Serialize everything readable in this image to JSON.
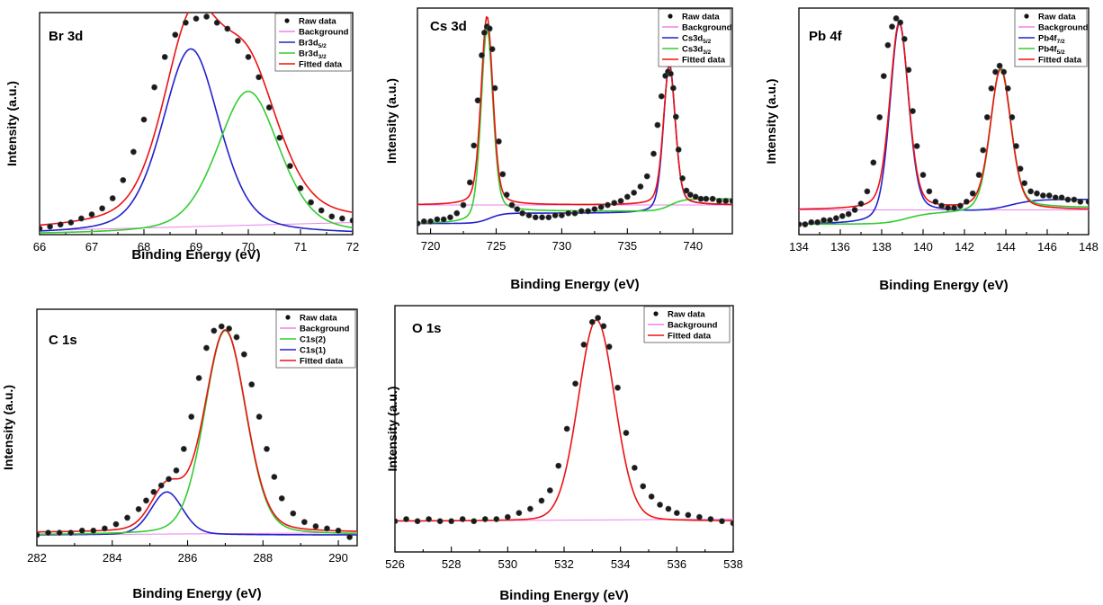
{
  "chart_data": [
    {
      "type": "line",
      "title": "Br 3d",
      "xlabel": "Binding Energy (eV)",
      "ylabel": "Intensity (a.u.)",
      "xlim": [
        66,
        72
      ],
      "ylim": [
        0,
        1.1
      ],
      "xticks": [
        "66",
        "67",
        "68",
        "69",
        "70",
        "71",
        "72"
      ],
      "legend_location": "top-right",
      "legend": [
        {
          "label": "Raw data",
          "sub": "",
          "style": "dots",
          "color": "#000000"
        },
        {
          "label": "Background",
          "sub": "",
          "style": "line",
          "color": "#ee82ee"
        },
        {
          "label": "Br3d",
          "sub": "5/2",
          "style": "line",
          "color": "#2222cc"
        },
        {
          "label": "Br3d",
          "sub": "3/2",
          "style": "line",
          "color": "#33cc33"
        },
        {
          "label": "Fitted data",
          "sub": "",
          "style": "line",
          "color": "#ee1111"
        }
      ],
      "series": [
        {
          "label_index": 1,
          "kind": "linear",
          "color": "#ee82ee",
          "from": [
            66,
            0.02
          ],
          "to": [
            72,
            0.06
          ]
        },
        {
          "label_index": 2,
          "kind": "voigt",
          "color": "#2222cc",
          "baseline": 0,
          "peaks": [
            [
              68.9,
              0.92,
              0.55,
              0.4
            ]
          ]
        },
        {
          "label_index": 3,
          "kind": "voigt",
          "color": "#33cc33",
          "baseline": 0,
          "peaks": [
            [
              70.0,
              0.71,
              0.6,
              0.4
            ]
          ]
        },
        {
          "label_index": 4,
          "kind": "voigt",
          "color": "#ee1111",
          "baseline": 0.02,
          "slope": 0.0067,
          "peaks": [
            [
              68.9,
              0.92,
              0.55,
              0.4
            ],
            [
              70.0,
              0.71,
              0.6,
              0.4
            ]
          ]
        }
      ],
      "raw": {
        "x": [
          66.0,
          66.2,
          66.4,
          66.6,
          66.8,
          67.0,
          67.2,
          67.4,
          67.6,
          67.8,
          68.0,
          68.2,
          68.4,
          68.6,
          68.8,
          69.0,
          69.2,
          69.4,
          69.6,
          69.8,
          70.0,
          70.2,
          70.4,
          70.6,
          70.8,
          71.0,
          71.2,
          71.4,
          71.6,
          71.8,
          72.0
        ],
        "y": [
          0.03,
          0.04,
          0.05,
          0.06,
          0.08,
          0.1,
          0.13,
          0.18,
          0.27,
          0.41,
          0.57,
          0.73,
          0.88,
          0.99,
          1.05,
          1.07,
          1.08,
          1.05,
          1.02,
          0.96,
          0.88,
          0.78,
          0.63,
          0.48,
          0.34,
          0.23,
          0.16,
          0.12,
          0.09,
          0.08,
          0.07
        ]
      }
    },
    {
      "type": "line",
      "title": "Cs 3d",
      "xlabel": "Binding Energy (eV)",
      "ylabel": "Intensity (a.u.)",
      "xlim": [
        719,
        743
      ],
      "ylim": [
        -0.05,
        1.05
      ],
      "xticks": [
        "720",
        "725",
        "730",
        "735",
        "740"
      ],
      "legend_location": "top-right",
      "legend": [
        {
          "label": "Raw data",
          "sub": "",
          "style": "dots",
          "color": "#000000"
        },
        {
          "label": "Background",
          "sub": "",
          "style": "line",
          "color": "#ee82ee"
        },
        {
          "label": "Cs3d",
          "sub": "5/2",
          "style": "line",
          "color": "#2222cc"
        },
        {
          "label": "Cs3d",
          "sub": "3/2",
          "style": "line",
          "color": "#33cc33"
        },
        {
          "label": "Fitted data",
          "sub": "",
          "style": "line",
          "color": "#ee1111"
        }
      ],
      "series": [
        {
          "label_index": 1,
          "kind": "linear",
          "color": "#ee82ee",
          "from": [
            719,
            0.09
          ],
          "to": [
            743,
            0.09
          ]
        },
        {
          "label_index": 2,
          "kind": "voigt",
          "color": "#2222cc",
          "baseline": 0,
          "step": [
            [
              724.5,
              0.05,
              0.5
            ],
            [
              738.3,
              0.04,
              0.5
            ]
          ],
          "peaks": [
            [
              738.2,
              0.71,
              0.45,
              0.3
            ]
          ]
        },
        {
          "label_index": 3,
          "kind": "voigt",
          "color": "#33cc33",
          "baseline": 0,
          "step": [
            [
              724.3,
              0.06,
              0.5
            ],
            [
              738.3,
              0.06,
              0.5
            ]
          ],
          "peaks": [
            [
              724.3,
              0.92,
              0.45,
              0.3
            ]
          ]
        },
        {
          "label_index": 4,
          "kind": "voigt",
          "color": "#ee1111",
          "baseline": 0.09,
          "peaks": [
            [
              724.3,
              0.92,
              0.45,
              0.3
            ],
            [
              738.2,
              0.68,
              0.45,
              0.3
            ]
          ]
        }
      ],
      "raw": {
        "x": [
          719.0,
          719.5,
          720.0,
          720.5,
          721.0,
          721.5,
          722.0,
          722.5,
          723.0,
          723.3,
          723.6,
          723.9,
          724.1,
          724.3,
          724.5,
          724.7,
          724.9,
          725.2,
          725.5,
          725.8,
          726.2,
          726.6,
          727.0,
          727.5,
          728.0,
          728.5,
          729.0,
          729.5,
          730.0,
          730.5,
          731.0,
          731.5,
          732.0,
          732.5,
          733.0,
          733.5,
          734.0,
          734.5,
          735.0,
          735.5,
          736.0,
          736.5,
          737.0,
          737.3,
          737.6,
          737.9,
          738.1,
          738.3,
          738.5,
          738.7,
          738.9,
          739.2,
          739.5,
          739.8,
          740.2,
          740.6,
          741.0,
          741.5,
          742.0,
          742.5,
          743.0
        ],
        "y": [
          0.0,
          0.01,
          0.01,
          0.02,
          0.02,
          0.03,
          0.05,
          0.09,
          0.2,
          0.38,
          0.6,
          0.82,
          0.93,
          0.96,
          0.95,
          0.85,
          0.66,
          0.4,
          0.24,
          0.14,
          0.09,
          0.07,
          0.05,
          0.04,
          0.03,
          0.03,
          0.03,
          0.04,
          0.04,
          0.05,
          0.05,
          0.06,
          0.06,
          0.07,
          0.08,
          0.09,
          0.1,
          0.11,
          0.13,
          0.15,
          0.18,
          0.23,
          0.34,
          0.48,
          0.62,
          0.72,
          0.74,
          0.73,
          0.66,
          0.52,
          0.36,
          0.22,
          0.16,
          0.14,
          0.13,
          0.12,
          0.12,
          0.12,
          0.11,
          0.11,
          0.11
        ]
      }
    },
    {
      "type": "line",
      "title": "Pb 4f",
      "xlabel": "Binding Energy (eV)",
      "ylabel": "Intensity (a.u.)",
      "xlim": [
        134,
        148
      ],
      "ylim": [
        -0.05,
        1.05
      ],
      "xticks": [
        "134",
        "136",
        "138",
        "140",
        "142",
        "144",
        "146",
        "148"
      ],
      "legend_location": "top-right",
      "legend": [
        {
          "label": "Raw data",
          "sub": "",
          "style": "dots",
          "color": "#000000"
        },
        {
          "label": "Background",
          "sub": "",
          "style": "line",
          "color": "#ee82ee"
        },
        {
          "label": "Pb4f",
          "sub": "7/2",
          "style": "line",
          "color": "#2222cc"
        },
        {
          "label": "Pb4f",
          "sub": "5/2",
          "style": "line",
          "color": "#33cc33"
        },
        {
          "label": "Fitted data",
          "sub": "",
          "style": "line",
          "color": "#ee1111"
        }
      ],
      "series": [
        {
          "label_index": 1,
          "kind": "linear",
          "color": "#ee82ee",
          "from": [
            134,
            0.07
          ],
          "to": [
            148,
            0.07
          ]
        },
        {
          "label_index": 2,
          "kind": "voigt",
          "color": "#2222cc",
          "baseline": 0,
          "step": [
            [
              139.0,
              0.06,
              0.5
            ],
            [
              144.2,
              0.06,
              0.6
            ]
          ],
          "peaks": [
            [
              138.85,
              0.95,
              0.45,
              0.3
            ]
          ]
        },
        {
          "label_index": 3,
          "kind": "voigt",
          "color": "#33cc33",
          "baseline": 0,
          "step": [
            [
              139.2,
              0.05,
              0.5
            ],
            [
              143.9,
              0.03,
              0.5
            ]
          ],
          "peaks": [
            [
              143.75,
              0.7,
              0.5,
              0.3
            ]
          ]
        },
        {
          "label_index": 4,
          "kind": "voigt",
          "color": "#ee1111",
          "baseline": 0.07,
          "peaks": [
            [
              138.85,
              0.91,
              0.45,
              0.3
            ],
            [
              143.75,
              0.68,
              0.5,
              0.3
            ]
          ]
        }
      ],
      "raw": {
        "x": [
          134.0,
          134.3,
          134.6,
          134.9,
          135.2,
          135.5,
          135.8,
          136.1,
          136.4,
          136.7,
          137.0,
          137.3,
          137.6,
          137.9,
          138.1,
          138.3,
          138.5,
          138.7,
          138.9,
          139.1,
          139.3,
          139.5,
          139.7,
          140.0,
          140.3,
          140.6,
          140.9,
          141.2,
          141.5,
          141.8,
          142.1,
          142.4,
          142.7,
          142.9,
          143.1,
          143.3,
          143.5,
          143.7,
          143.9,
          144.1,
          144.3,
          144.5,
          144.7,
          144.9,
          145.2,
          145.5,
          145.8,
          146.1,
          146.4,
          146.7,
          147.0,
          147.3,
          147.6,
          148.0
        ],
        "y": [
          0.0,
          0.0,
          0.01,
          0.01,
          0.02,
          0.02,
          0.03,
          0.04,
          0.05,
          0.07,
          0.1,
          0.16,
          0.3,
          0.52,
          0.72,
          0.87,
          0.96,
          1.0,
          0.98,
          0.9,
          0.75,
          0.55,
          0.38,
          0.24,
          0.16,
          0.11,
          0.09,
          0.08,
          0.08,
          0.09,
          0.11,
          0.15,
          0.24,
          0.36,
          0.52,
          0.66,
          0.74,
          0.77,
          0.74,
          0.66,
          0.52,
          0.38,
          0.27,
          0.2,
          0.16,
          0.15,
          0.14,
          0.14,
          0.13,
          0.13,
          0.12,
          0.12,
          0.11,
          0.11
        ]
      }
    },
    {
      "type": "line",
      "title": "C 1s",
      "xlabel": "Binding Energy (eV)",
      "ylabel": "Intensity (a.u.)",
      "xlim": [
        282,
        290.5
      ],
      "ylim": [
        -0.05,
        1.05
      ],
      "xticks": [
        "282",
        "284",
        "286",
        "288",
        "290"
      ],
      "legend_location": "top-right",
      "legend": [
        {
          "label": "Raw data",
          "sub": "",
          "style": "dots",
          "color": "#000000"
        },
        {
          "label": "Background",
          "sub": "",
          "style": "line",
          "color": "#ee82ee"
        },
        {
          "label": "C1s(2)",
          "sub": "",
          "style": "line",
          "color": "#33cc33"
        },
        {
          "label": "C1s(1)",
          "sub": "",
          "style": "line",
          "color": "#2222cc"
        },
        {
          "label": "Fitted data",
          "sub": "",
          "style": "line",
          "color": "#ee1111"
        }
      ],
      "series": [
        {
          "label_index": 1,
          "kind": "linear",
          "color": "#ee82ee",
          "from": [
            282,
            0.0
          ],
          "to": [
            290.5,
            0.01
          ]
        },
        {
          "label_index": 3,
          "kind": "voigt",
          "color": "#2222cc",
          "baseline": 0,
          "peaks": [
            [
              285.45,
              0.2,
              0.42,
              0.2
            ]
          ]
        },
        {
          "label_index": 2,
          "kind": "voigt",
          "color": "#33cc33",
          "baseline": 0,
          "peaks": [
            [
              287.0,
              0.95,
              0.55,
              0.2
            ]
          ]
        },
        {
          "label_index": 4,
          "kind": "voigt",
          "color": "#ee1111",
          "baseline": 0.01,
          "peaks": [
            [
              285.45,
              0.2,
              0.42,
              0.2
            ],
            [
              287.0,
              0.94,
              0.55,
              0.2
            ]
          ]
        }
      ],
      "raw": {
        "x": [
          282.0,
          282.3,
          282.6,
          282.9,
          283.2,
          283.5,
          283.8,
          284.1,
          284.4,
          284.7,
          284.9,
          285.1,
          285.3,
          285.5,
          285.7,
          285.9,
          286.1,
          286.3,
          286.5,
          286.7,
          286.9,
          287.1,
          287.3,
          287.5,
          287.7,
          287.9,
          288.1,
          288.3,
          288.5,
          288.8,
          289.1,
          289.4,
          289.7,
          290.0,
          290.3
        ],
        "y": [
          0.0,
          0.01,
          0.01,
          0.01,
          0.02,
          0.02,
          0.03,
          0.05,
          0.08,
          0.12,
          0.16,
          0.2,
          0.23,
          0.26,
          0.3,
          0.4,
          0.55,
          0.73,
          0.87,
          0.95,
          0.97,
          0.96,
          0.92,
          0.84,
          0.7,
          0.55,
          0.4,
          0.27,
          0.17,
          0.1,
          0.06,
          0.04,
          0.03,
          0.02,
          -0.01
        ]
      }
    },
    {
      "type": "line",
      "title": "O 1s",
      "xlabel": "Binding Energy (eV)",
      "ylabel": "Intensity (a.u.)",
      "xlim": [
        526,
        538
      ],
      "ylim": [
        -0.15,
        1.05
      ],
      "xticks": [
        "526",
        "528",
        "530",
        "532",
        "534",
        "536",
        "538"
      ],
      "legend_location": "top-right",
      "legend": [
        {
          "label": "Raw data",
          "sub": "",
          "style": "dots",
          "color": "#000000"
        },
        {
          "label": "Background",
          "sub": "",
          "style": "line",
          "color": "#ee82ee"
        },
        {
          "label": "Fitted data",
          "sub": "",
          "style": "line",
          "color": "#ee1111"
        }
      ],
      "series": [
        {
          "label_index": 1,
          "kind": "linear",
          "color": "#ee82ee",
          "from": [
            526,
            0.0
          ],
          "to": [
            538,
            0.01
          ]
        },
        {
          "label_index": 2,
          "kind": "voigt",
          "color": "#ee1111",
          "baseline": 0.0,
          "peaks": [
            [
              533.15,
              0.98,
              0.65,
              0.1
            ]
          ]
        }
      ],
      "raw": {
        "x": [
          526.0,
          526.4,
          526.8,
          527.2,
          527.6,
          528.0,
          528.4,
          528.8,
          529.2,
          529.6,
          530.0,
          530.4,
          530.8,
          531.2,
          531.5,
          531.8,
          532.1,
          532.4,
          532.7,
          533.0,
          533.2,
          533.4,
          533.6,
          533.9,
          534.2,
          534.5,
          534.8,
          535.1,
          535.4,
          535.7,
          536.0,
          536.4,
          536.8,
          537.2,
          537.6,
          538.0
        ],
        "y": [
          0.0,
          0.01,
          0.0,
          0.01,
          0.0,
          0.0,
          0.01,
          0.0,
          0.01,
          0.01,
          0.02,
          0.04,
          0.06,
          0.1,
          0.15,
          0.27,
          0.45,
          0.67,
          0.86,
          0.97,
          0.99,
          0.95,
          0.85,
          0.65,
          0.43,
          0.26,
          0.17,
          0.12,
          0.08,
          0.06,
          0.04,
          0.03,
          0.02,
          0.01,
          0.0,
          -0.01
        ]
      }
    }
  ]
}
